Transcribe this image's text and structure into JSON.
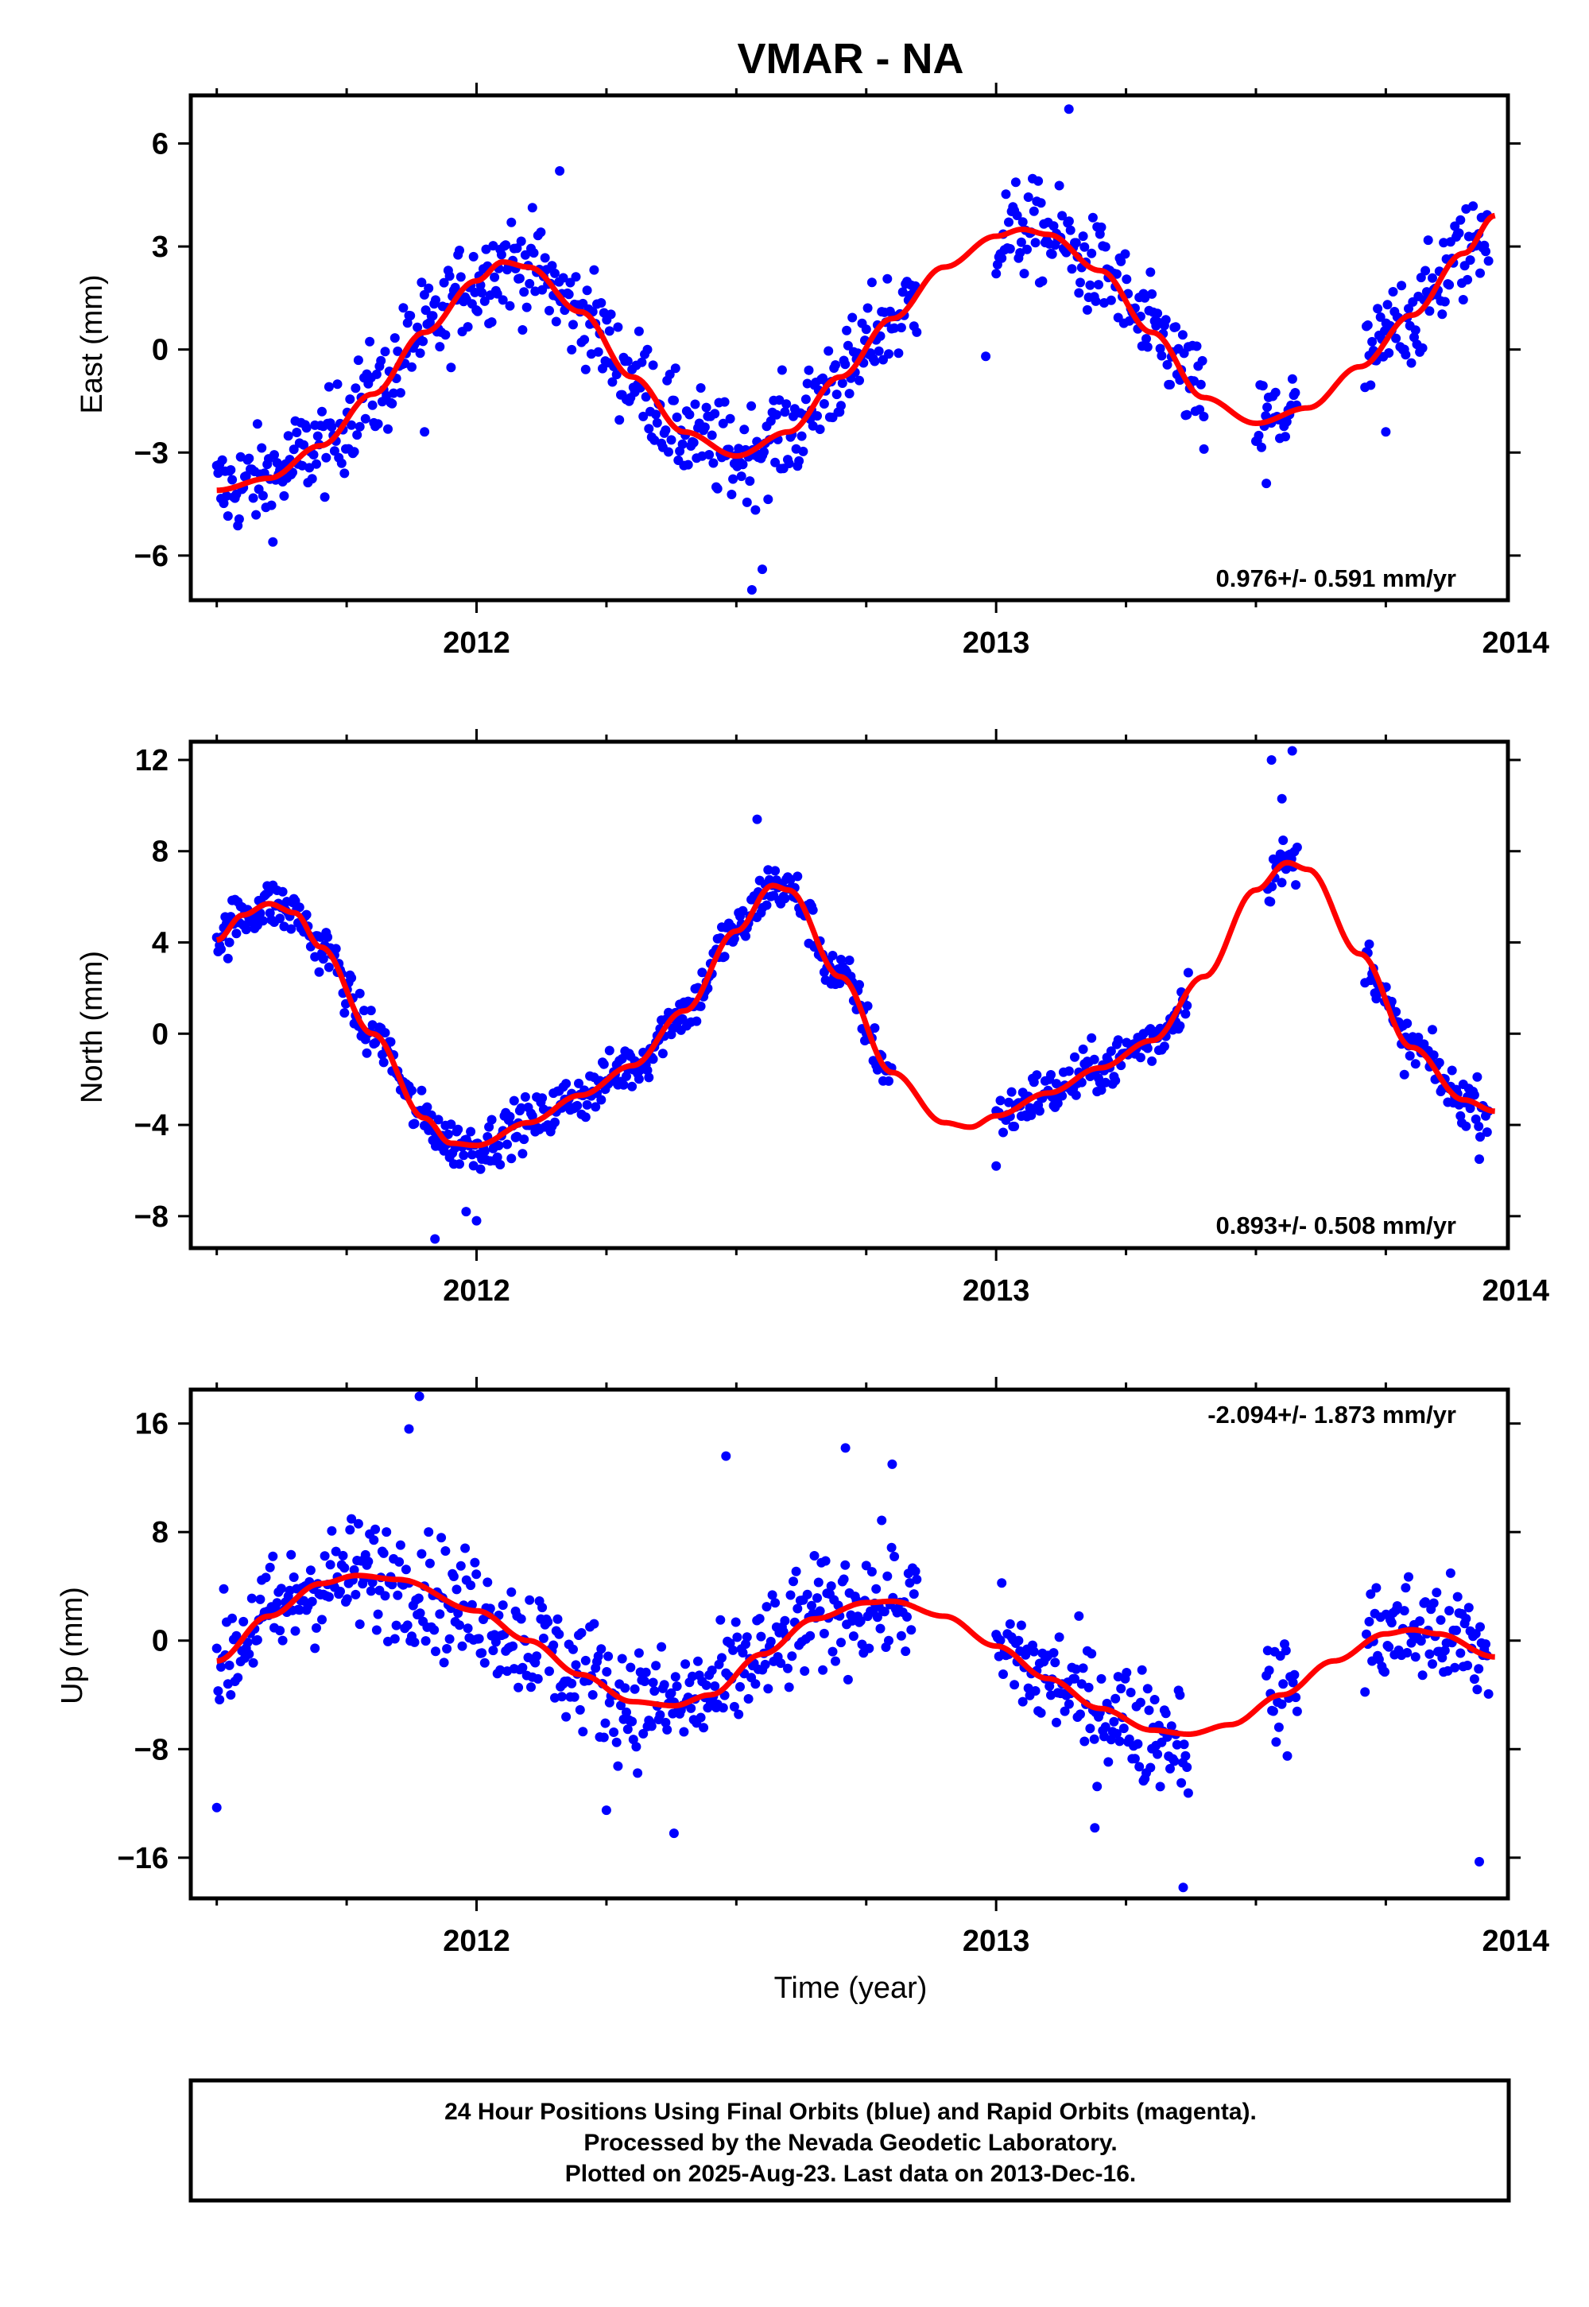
{
  "title": "VMAR - NA",
  "xlabel": "Time (year)",
  "footer": {
    "line1": "24 Hour Positions Using Final Orbits (blue) and Rapid Orbits (magenta).",
    "line2": "Processed by the Nevada Geodetic Laboratory.",
    "line3": "Plotted on 2025-Aug-23. Last data on 2013-Dec-16."
  },
  "colors": {
    "points": "#0000ff",
    "fit": "#ff0000",
    "frame": "#000000"
  },
  "chart_data": [
    {
      "type": "scatter",
      "panel": "east",
      "ylabel": "East (mm)",
      "rate_label": "0.976+/- 0.591 mm/yr",
      "rate_position": "bottom-right",
      "xlim": [
        2011.45,
        2013.985
      ],
      "ylim": [
        -7.3,
        7.4
      ],
      "xticks": [
        2012,
        2013,
        2014
      ],
      "xticklabels": [
        "2012",
        "2013",
        "2014"
      ],
      "yticks": [
        -6,
        -3,
        0,
        3,
        6
      ],
      "yticklabels": [
        "−6",
        "−3",
        "0",
        "3",
        "6"
      ],
      "fit_points": [
        [
          2011.5,
          -4.1
        ],
        [
          2011.6,
          -3.75
        ],
        [
          2011.7,
          -2.8
        ],
        [
          2011.8,
          -1.3
        ],
        [
          2011.9,
          0.5
        ],
        [
          2012.0,
          2.0
        ],
        [
          2012.05,
          2.55
        ],
        [
          2012.1,
          2.4
        ],
        [
          2012.2,
          1.1
        ],
        [
          2012.3,
          -0.8
        ],
        [
          2012.4,
          -2.4
        ],
        [
          2012.5,
          -3.1
        ],
        [
          2012.6,
          -2.4
        ],
        [
          2012.7,
          -0.8
        ],
        [
          2012.8,
          0.9
        ],
        [
          2012.9,
          2.4
        ],
        [
          2013.0,
          3.3
        ],
        [
          2013.05,
          3.5
        ],
        [
          2013.1,
          3.35
        ],
        [
          2013.2,
          2.3
        ],
        [
          2013.3,
          0.5
        ],
        [
          2013.4,
          -1.4
        ],
        [
          2013.5,
          -2.15
        ],
        [
          2013.6,
          -1.7
        ],
        [
          2013.7,
          -0.5
        ],
        [
          2013.8,
          1.0
        ],
        [
          2013.9,
          2.8
        ],
        [
          2013.96,
          3.9
        ]
      ],
      "scatter_segments": [
        [
          2011.5,
          2012.85
        ],
        [
          2013.0,
          2013.4
        ],
        [
          2013.5,
          2013.58
        ],
        [
          2013.71,
          2013.95
        ]
      ],
      "scatter_spread": 1.2,
      "outliers": [
        [
          2013.14,
          7.0
        ],
        [
          2012.53,
          -7.0
        ],
        [
          2012.55,
          -6.4
        ],
        [
          2012.16,
          5.2
        ],
        [
          2013.52,
          -3.9
        ],
        [
          2011.9,
          -2.4
        ],
        [
          2013.75,
          -2.4
        ],
        [
          2012.98,
          -0.2
        ],
        [
          2013.4,
          -2.9
        ]
      ]
    },
    {
      "type": "scatter",
      "panel": "north",
      "ylabel": "North (mm)",
      "rate_label": "0.893+/- 0.508 mm/yr",
      "rate_position": "bottom-right",
      "xlim": [
        2011.45,
        2013.985
      ],
      "ylim": [
        -9.4,
        12.8
      ],
      "xticks": [
        2012,
        2013,
        2014
      ],
      "xticklabels": [
        "2012",
        "2013",
        "2014"
      ],
      "yticks": [
        -8,
        -4,
        0,
        4,
        8,
        12
      ],
      "yticklabels": [
        "−8",
        "−4",
        "0",
        "4",
        "8",
        "12"
      ],
      "fit_points": [
        [
          2011.5,
          4.1
        ],
        [
          2011.55,
          5.2
        ],
        [
          2011.6,
          5.7
        ],
        [
          2011.65,
          5.3
        ],
        [
          2011.7,
          3.8
        ],
        [
          2011.8,
          0.0
        ],
        [
          2011.9,
          -3.7
        ],
        [
          2011.95,
          -4.8
        ],
        [
          2012.0,
          -4.9
        ],
        [
          2012.1,
          -3.9
        ],
        [
          2012.2,
          -2.7
        ],
        [
          2012.3,
          -1.4
        ],
        [
          2012.4,
          1.0
        ],
        [
          2012.5,
          4.5
        ],
        [
          2012.57,
          6.5
        ],
        [
          2012.6,
          6.3
        ],
        [
          2012.7,
          2.5
        ],
        [
          2012.8,
          -1.7
        ],
        [
          2012.9,
          -3.9
        ],
        [
          2012.95,
          -4.1
        ],
        [
          2013.0,
          -3.6
        ],
        [
          2013.1,
          -2.6
        ],
        [
          2013.2,
          -1.5
        ],
        [
          2013.3,
          -0.3
        ],
        [
          2013.4,
          2.5
        ],
        [
          2013.5,
          6.3
        ],
        [
          2013.56,
          7.5
        ],
        [
          2013.6,
          7.2
        ],
        [
          2013.7,
          3.5
        ],
        [
          2013.8,
          -0.6
        ],
        [
          2013.9,
          -2.9
        ],
        [
          2013.96,
          -3.4
        ]
      ],
      "scatter_segments": [
        [
          2011.5,
          2012.8
        ],
        [
          2013.0,
          2013.37
        ],
        [
          2013.52,
          2013.58
        ],
        [
          2013.71,
          2013.95
        ]
      ],
      "scatter_spread": 0.9,
      "outliers": [
        [
          2011.92,
          -9.0
        ],
        [
          2012.0,
          -8.2
        ],
        [
          2013.53,
          12.0
        ],
        [
          2013.57,
          12.4
        ],
        [
          2013.55,
          10.3
        ],
        [
          2012.54,
          9.4
        ],
        [
          2013.0,
          -5.8
        ],
        [
          2011.98,
          -7.8
        ],
        [
          2013.93,
          -5.5
        ]
      ]
    },
    {
      "type": "scatter",
      "panel": "up",
      "ylabel": "Up (mm)",
      "rate_label": "-2.094+/- 1.873 mm/yr",
      "rate_position": "top-right",
      "xlim": [
        2011.45,
        2013.985
      ],
      "ylim": [
        -19,
        18.5
      ],
      "xticks": [
        2012,
        2013,
        2014
      ],
      "xticklabels": [
        "2012",
        "2013",
        "2014"
      ],
      "yticks": [
        -16,
        -8,
        0,
        8,
        16
      ],
      "yticklabels": [
        "−16",
        "−8",
        "0",
        "8",
        "16"
      ],
      "fit_points": [
        [
          2011.5,
          -1.5
        ],
        [
          2011.6,
          1.8
        ],
        [
          2011.7,
          4.2
        ],
        [
          2011.77,
          4.8
        ],
        [
          2011.85,
          4.5
        ],
        [
          2012.0,
          2.2
        ],
        [
          2012.1,
          0.0
        ],
        [
          2012.2,
          -2.5
        ],
        [
          2012.3,
          -4.5
        ],
        [
          2012.38,
          -4.8
        ],
        [
          2012.45,
          -4.0
        ],
        [
          2012.55,
          -1.0
        ],
        [
          2012.65,
          1.6
        ],
        [
          2012.75,
          2.8
        ],
        [
          2012.8,
          2.9
        ],
        [
          2012.9,
          1.8
        ],
        [
          2013.0,
          -0.4
        ],
        [
          2013.1,
          -2.8
        ],
        [
          2013.2,
          -5.0
        ],
        [
          2013.3,
          -6.6
        ],
        [
          2013.37,
          -6.9
        ],
        [
          2013.45,
          -6.2
        ],
        [
          2013.55,
          -4.0
        ],
        [
          2013.65,
          -1.5
        ],
        [
          2013.75,
          0.5
        ],
        [
          2013.8,
          0.8
        ],
        [
          2013.85,
          0.5
        ],
        [
          2013.96,
          -1.2
        ]
      ],
      "scatter_segments": [
        [
          2011.5,
          2012.85
        ],
        [
          2013.0,
          2013.37
        ],
        [
          2013.52,
          2013.58
        ],
        [
          2013.71,
          2013.95
        ]
      ],
      "scatter_spread": 3.6,
      "outliers": [
        [
          2011.89,
          18.0
        ],
        [
          2011.87,
          15.6
        ],
        [
          2012.48,
          13.6
        ],
        [
          2012.71,
          14.2
        ],
        [
          2012.8,
          13.0
        ],
        [
          2012.38,
          -14.2
        ],
        [
          2013.19,
          -13.8
        ],
        [
          2013.36,
          -18.2
        ],
        [
          2013.93,
          -16.3
        ],
        [
          2011.5,
          -12.3
        ],
        [
          2012.25,
          -12.5
        ]
      ]
    }
  ]
}
